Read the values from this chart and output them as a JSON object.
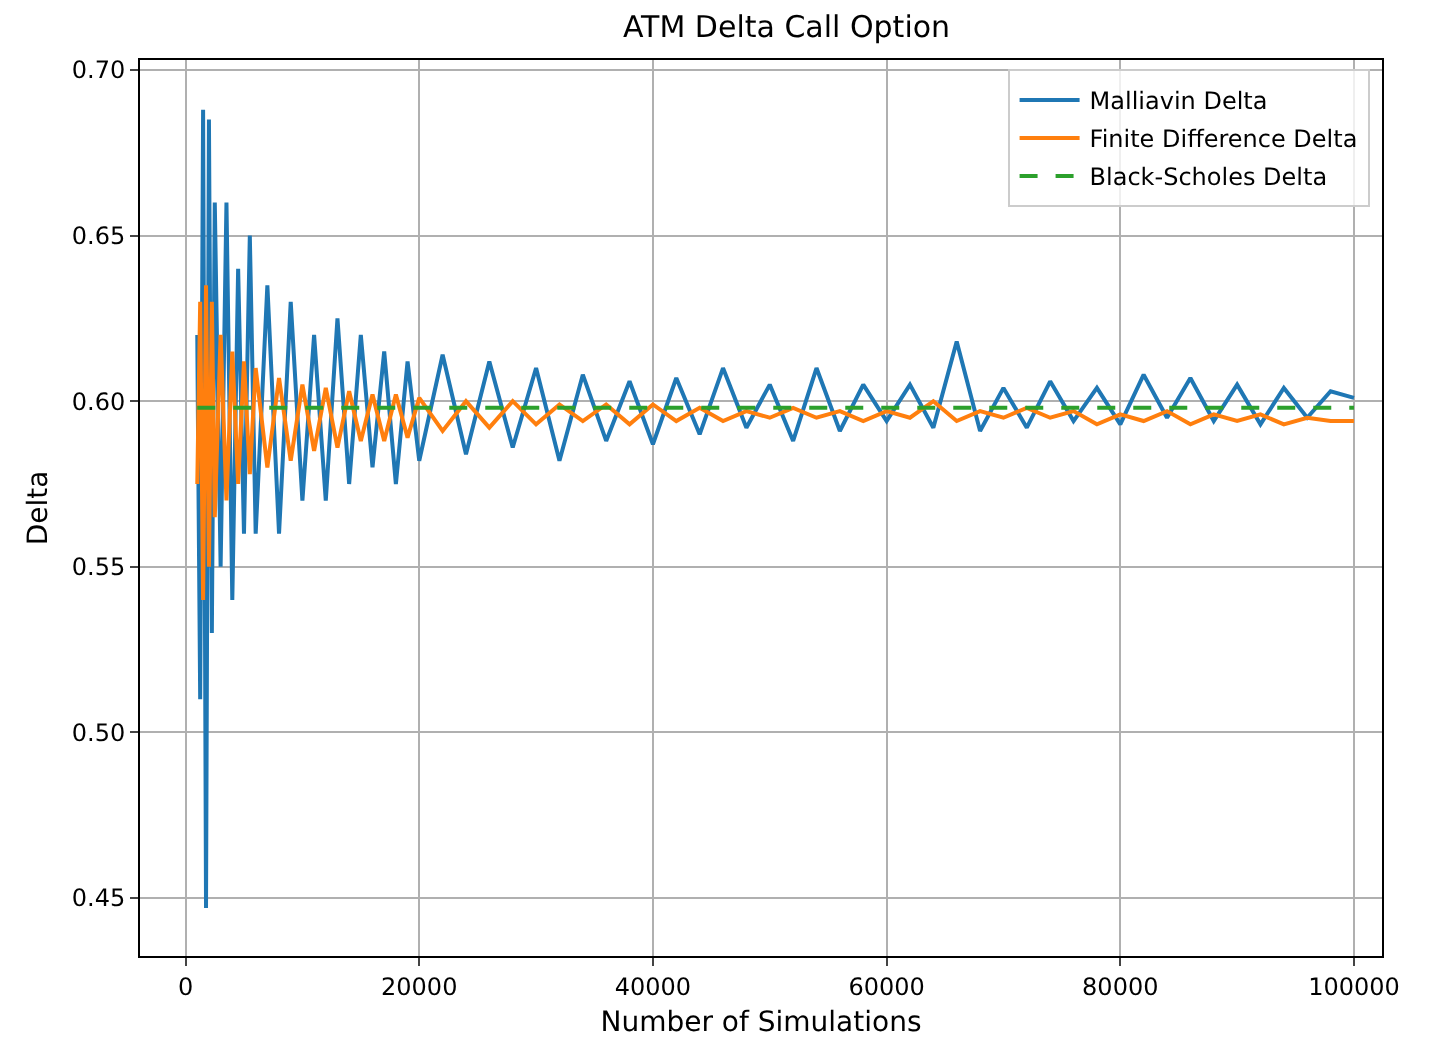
{
  "chart_data": {
    "type": "line",
    "title": "ATM Delta Call Option",
    "xlabel": "Number of Simulations",
    "ylabel": "Delta",
    "x": [
      1000,
      1250,
      1500,
      1750,
      2000,
      2250,
      2500,
      3000,
      3500,
      4000,
      4500,
      5000,
      5500,
      6000,
      7000,
      8000,
      9000,
      10000,
      11000,
      12000,
      13000,
      14000,
      15000,
      16000,
      17000,
      18000,
      19000,
      20000,
      22000,
      24000,
      26000,
      28000,
      30000,
      32000,
      34000,
      36000,
      38000,
      40000,
      42000,
      44000,
      46000,
      48000,
      50000,
      52000,
      54000,
      56000,
      58000,
      60000,
      62000,
      64000,
      66000,
      68000,
      70000,
      72000,
      74000,
      76000,
      78000,
      80000,
      82000,
      84000,
      86000,
      88000,
      90000,
      92000,
      94000,
      96000,
      98000,
      100000
    ],
    "series": [
      {
        "name": "Malliavin Delta",
        "color": "#1f77b4",
        "values": [
          0.62,
          0.51,
          0.688,
          0.447,
          0.685,
          0.53,
          0.66,
          0.55,
          0.66,
          0.54,
          0.64,
          0.56,
          0.65,
          0.56,
          0.635,
          0.56,
          0.63,
          0.57,
          0.62,
          0.57,
          0.625,
          0.575,
          0.62,
          0.58,
          0.615,
          0.575,
          0.612,
          0.582,
          0.614,
          0.584,
          0.612,
          0.586,
          0.61,
          0.582,
          0.608,
          0.588,
          0.606,
          0.587,
          0.607,
          0.59,
          0.61,
          0.592,
          0.605,
          0.588,
          0.61,
          0.591,
          0.605,
          0.594,
          0.605,
          0.592,
          0.618,
          0.591,
          0.604,
          0.592,
          0.606,
          0.594,
          0.604,
          0.593,
          0.608,
          0.595,
          0.607,
          0.594,
          0.605,
          0.593,
          0.604,
          0.595,
          0.603,
          0.601
        ]
      },
      {
        "name": "Finite Difference Delta",
        "color": "#ff7f0e",
        "values": [
          0.575,
          0.63,
          0.54,
          0.635,
          0.55,
          0.63,
          0.565,
          0.62,
          0.57,
          0.615,
          0.575,
          0.612,
          0.578,
          0.61,
          0.58,
          0.607,
          0.582,
          0.605,
          0.585,
          0.604,
          0.586,
          0.603,
          0.588,
          0.602,
          0.588,
          0.602,
          0.589,
          0.601,
          0.591,
          0.6,
          0.592,
          0.6,
          0.593,
          0.599,
          0.594,
          0.599,
          0.593,
          0.599,
          0.594,
          0.598,
          0.594,
          0.597,
          0.595,
          0.598,
          0.595,
          0.597,
          0.594,
          0.597,
          0.595,
          0.6,
          0.594,
          0.597,
          0.595,
          0.598,
          0.595,
          0.597,
          0.593,
          0.596,
          0.594,
          0.597,
          0.593,
          0.596,
          0.594,
          0.596,
          0.593,
          0.595,
          0.594,
          0.594
        ]
      },
      {
        "name": "Black-Scholes Delta",
        "color": "#2ca02c",
        "line_style": "dashed",
        "x": [
          1000,
          100000
        ],
        "values": [
          0.598,
          0.598
        ]
      }
    ],
    "xlim": [
      -3900,
      102400
    ],
    "xticks": [
      0,
      20000,
      40000,
      60000,
      80000,
      100000
    ],
    "ylim": [
      0.4325,
      0.703
    ],
    "yticks": [
      0.45,
      {
        "value": 0.5,
        "label": "0.50"
      },
      0.55,
      {
        "value": 0.6,
        "label": "0.60"
      },
      0.65,
      {
        "value": 0.7,
        "label": "0.70"
      }
    ],
    "grid": true,
    "legend": "top right",
    "line_style": "solid",
    "marker": "none"
  }
}
